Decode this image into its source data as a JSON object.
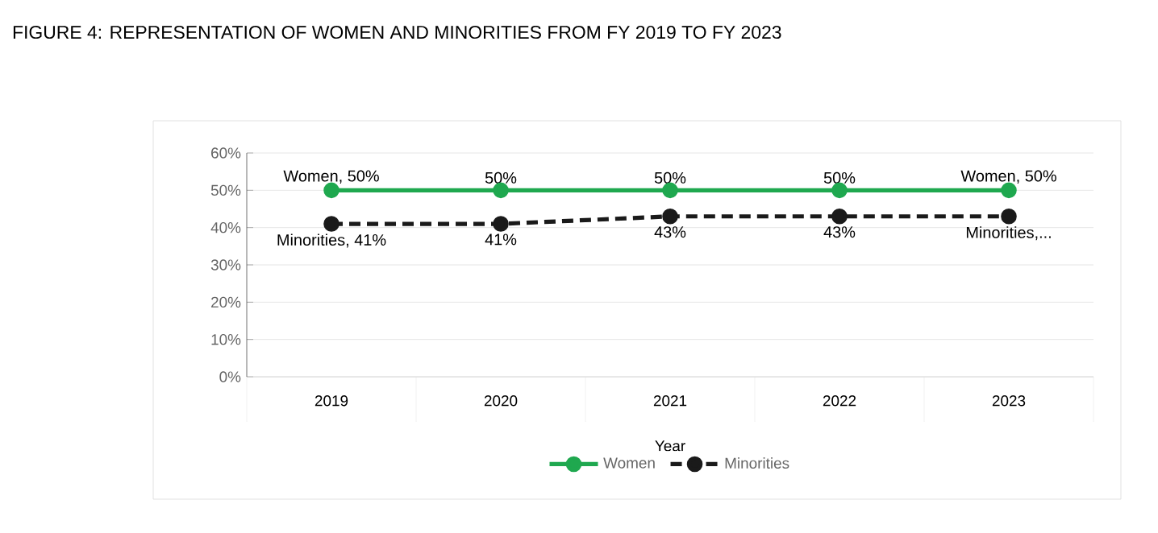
{
  "chart_data": {
    "type": "line",
    "title": "FIGURE 4: REPRESENTATION OF WOMEN AND MINORITIES FROM FY 2019 TO FY 2023",
    "xlabel": "Year",
    "categories": [
      "2019",
      "2020",
      "2021",
      "2022",
      "2023"
    ],
    "series": [
      {
        "name": "Women",
        "color": "#1fa84f",
        "values": [
          50,
          50,
          50,
          50,
          50
        ],
        "line_style": "solid",
        "value_labels": [
          "Women, 50%",
          "50%",
          "50%",
          "50%",
          "Women, 50%"
        ]
      },
      {
        "name": "Minorities",
        "color": "#1a1a1a",
        "values": [
          41,
          41,
          43,
          43,
          43
        ],
        "line_style": "dashed",
        "value_labels": [
          "Minorities, 41%",
          "41%",
          "43%",
          "43%",
          "Minorities,..."
        ]
      }
    ],
    "ylim": [
      0,
      60
    ],
    "yticks": [
      {
        "value": 0,
        "label": "0%"
      },
      {
        "value": 10,
        "label": "10%"
      },
      {
        "value": 20,
        "label": "20%"
      },
      {
        "value": 30,
        "label": "30%"
      },
      {
        "value": 40,
        "label": "40%"
      },
      {
        "value": 50,
        "label": "50%"
      },
      {
        "value": 60,
        "label": "60%"
      }
    ],
    "grid": "y",
    "legend": "bottom",
    "marker": "circle"
  }
}
